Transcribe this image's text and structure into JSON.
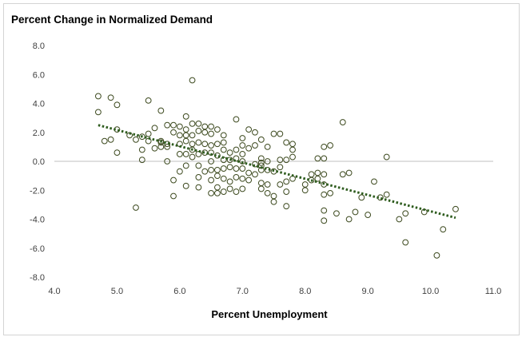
{
  "chart_data": {
    "type": "scatter",
    "title": "Percent Change in Normalized Demand",
    "xlabel": "Percent Unemployment",
    "ylabel": "",
    "xlim": [
      4.0,
      11.0
    ],
    "ylim": [
      -8.0,
      8.0
    ],
    "xticks": [
      "4.0",
      "5.0",
      "6.0",
      "7.0",
      "8.0",
      "9.0",
      "10.0",
      "11.0"
    ],
    "yticks": [
      "8.0",
      "6.0",
      "4.0",
      "2.0",
      "0.0",
      "-2.0",
      "-4.0",
      "-6.0",
      "-8.0"
    ],
    "grid": false,
    "legend": "none",
    "marker_color": "#3d4a1f",
    "trendline": {
      "style": "dotted",
      "color": "#2e5c1e",
      "x": [
        4.7,
        10.4
      ],
      "y": [
        2.5,
        -3.9
      ]
    },
    "points": [
      [
        4.7,
        4.5
      ],
      [
        4.7,
        3.4
      ],
      [
        4.8,
        1.4
      ],
      [
        4.9,
        4.4
      ],
      [
        4.9,
        1.5
      ],
      [
        5.0,
        3.9
      ],
      [
        5.0,
        2.2
      ],
      [
        5.0,
        0.6
      ],
      [
        5.2,
        1.8
      ],
      [
        5.3,
        1.5
      ],
      [
        5.3,
        -3.2
      ],
      [
        5.4,
        1.7
      ],
      [
        5.4,
        0.8
      ],
      [
        5.4,
        0.1
      ],
      [
        5.5,
        4.2
      ],
      [
        5.5,
        1.9
      ],
      [
        5.5,
        1.4
      ],
      [
        5.6,
        2.3
      ],
      [
        5.6,
        0.9
      ],
      [
        5.7,
        3.5
      ],
      [
        5.7,
        1.4
      ],
      [
        5.7,
        1.0
      ],
      [
        5.7,
        1.3
      ],
      [
        5.8,
        2.5
      ],
      [
        5.8,
        1.2
      ],
      [
        5.8,
        1.0
      ],
      [
        5.8,
        0.0
      ],
      [
        5.9,
        2.5
      ],
      [
        5.9,
        2.0
      ],
      [
        5.9,
        -1.3
      ],
      [
        5.9,
        -2.4
      ],
      [
        6.0,
        2.4
      ],
      [
        6.0,
        1.8
      ],
      [
        6.0,
        1.2
      ],
      [
        6.0,
        0.5
      ],
      [
        6.0,
        -0.7
      ],
      [
        6.1,
        3.1
      ],
      [
        6.1,
        2.2
      ],
      [
        6.1,
        1.8
      ],
      [
        6.1,
        1.4
      ],
      [
        6.1,
        0.5
      ],
      [
        6.1,
        -0.3
      ],
      [
        6.1,
        -1.7
      ],
      [
        6.2,
        5.6
      ],
      [
        6.2,
        2.6
      ],
      [
        6.2,
        1.8
      ],
      [
        6.2,
        1.2
      ],
      [
        6.2,
        0.8
      ],
      [
        6.2,
        0.3
      ],
      [
        6.3,
        2.6
      ],
      [
        6.3,
        2.1
      ],
      [
        6.3,
        1.3
      ],
      [
        6.3,
        0.5
      ],
      [
        6.3,
        -0.3
      ],
      [
        6.3,
        -1.1
      ],
      [
        6.3,
        -1.8
      ],
      [
        6.4,
        2.4
      ],
      [
        6.4,
        2.0
      ],
      [
        6.4,
        1.2
      ],
      [
        6.4,
        0.6
      ],
      [
        6.4,
        -0.7
      ],
      [
        6.5,
        2.4
      ],
      [
        6.5,
        1.9
      ],
      [
        6.5,
        1.1
      ],
      [
        6.5,
        0.6
      ],
      [
        6.5,
        0.0
      ],
      [
        6.5,
        -0.6
      ],
      [
        6.5,
        -1.3
      ],
      [
        6.5,
        -2.2
      ],
      [
        6.6,
        2.2
      ],
      [
        6.6,
        1.2
      ],
      [
        6.6,
        0.4
      ],
      [
        6.6,
        -0.6
      ],
      [
        6.6,
        -1.0
      ],
      [
        6.6,
        -1.8
      ],
      [
        6.6,
        -2.2
      ],
      [
        6.7,
        1.8
      ],
      [
        6.7,
        1.3
      ],
      [
        6.7,
        0.8
      ],
      [
        6.7,
        0.1
      ],
      [
        6.7,
        -0.5
      ],
      [
        6.7,
        -1.2
      ],
      [
        6.7,
        -2.1
      ],
      [
        6.8,
        0.6
      ],
      [
        6.8,
        0.1
      ],
      [
        6.8,
        -0.4
      ],
      [
        6.8,
        -1.4
      ],
      [
        6.8,
        -1.9
      ],
      [
        6.9,
        2.9
      ],
      [
        6.9,
        0.8
      ],
      [
        6.9,
        0.2
      ],
      [
        6.9,
        -0.5
      ],
      [
        6.9,
        -1.1
      ],
      [
        6.9,
        -2.1
      ],
      [
        7.0,
        1.6
      ],
      [
        7.0,
        1.1
      ],
      [
        7.0,
        0.5
      ],
      [
        7.0,
        0.0
      ],
      [
        7.0,
        -0.5
      ],
      [
        7.0,
        -1.2
      ],
      [
        7.0,
        -1.9
      ],
      [
        7.1,
        2.2
      ],
      [
        7.1,
        0.9
      ],
      [
        7.1,
        -0.8
      ],
      [
        7.1,
        -1.3
      ],
      [
        7.2,
        2.0
      ],
      [
        7.2,
        1.1
      ],
      [
        7.2,
        -0.2
      ],
      [
        7.2,
        -0.9
      ],
      [
        7.3,
        1.5
      ],
      [
        7.3,
        0.2
      ],
      [
        7.3,
        -0.1
      ],
      [
        7.3,
        -0.3
      ],
      [
        7.3,
        -0.6
      ],
      [
        7.3,
        -1.5
      ],
      [
        7.3,
        -1.9
      ],
      [
        7.4,
        1.0
      ],
      [
        7.4,
        0.0
      ],
      [
        7.4,
        -0.6
      ],
      [
        7.4,
        -1.6
      ],
      [
        7.4,
        -2.2
      ],
      [
        7.5,
        1.9
      ],
      [
        7.5,
        -0.7
      ],
      [
        7.5,
        -2.4
      ],
      [
        7.5,
        -2.8
      ],
      [
        7.6,
        1.9
      ],
      [
        7.6,
        0.1
      ],
      [
        7.6,
        -0.4
      ],
      [
        7.6,
        -1.6
      ],
      [
        7.7,
        1.3
      ],
      [
        7.7,
        0.1
      ],
      [
        7.7,
        -1.4
      ],
      [
        7.7,
        -2.1
      ],
      [
        7.7,
        -3.1
      ],
      [
        7.8,
        1.2
      ],
      [
        7.8,
        0.8
      ],
      [
        7.8,
        0.3
      ],
      [
        7.8,
        -1.2
      ],
      [
        8.0,
        -1.6
      ],
      [
        8.0,
        -2.0
      ],
      [
        8.1,
        -0.9
      ],
      [
        8.1,
        -1.3
      ],
      [
        8.2,
        0.2
      ],
      [
        8.2,
        -0.8
      ],
      [
        8.2,
        -1.2
      ],
      [
        8.3,
        1.0
      ],
      [
        8.3,
        0.2
      ],
      [
        8.3,
        -0.9
      ],
      [
        8.3,
        -1.6
      ],
      [
        8.3,
        -2.3
      ],
      [
        8.3,
        -3.4
      ],
      [
        8.3,
        -4.1
      ],
      [
        8.4,
        1.1
      ],
      [
        8.4,
        -2.2
      ],
      [
        8.5,
        -3.6
      ],
      [
        8.6,
        2.7
      ],
      [
        8.6,
        -0.9
      ],
      [
        8.7,
        -0.8
      ],
      [
        8.7,
        -4.0
      ],
      [
        8.8,
        -3.5
      ],
      [
        8.9,
        -2.5
      ],
      [
        9.0,
        -3.7
      ],
      [
        9.1,
        -1.4
      ],
      [
        9.2,
        -2.5
      ],
      [
        9.3,
        0.3
      ],
      [
        9.3,
        -2.3
      ],
      [
        9.5,
        -4.0
      ],
      [
        9.6,
        -3.6
      ],
      [
        9.6,
        -5.6
      ],
      [
        9.9,
        -3.5
      ],
      [
        10.1,
        -6.5
      ],
      [
        10.2,
        -4.7
      ],
      [
        10.4,
        -3.3
      ]
    ]
  }
}
